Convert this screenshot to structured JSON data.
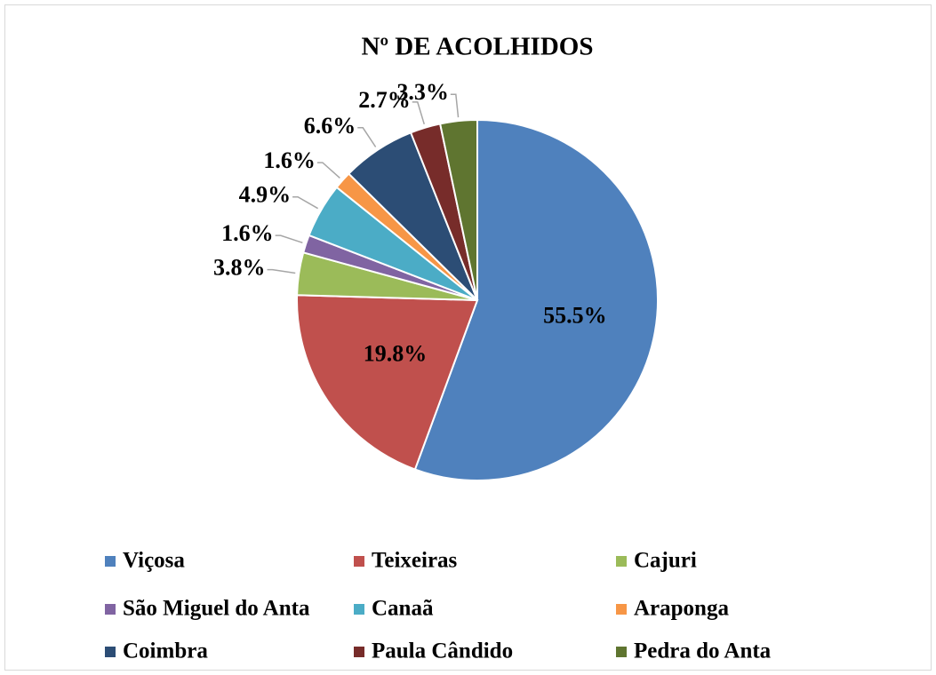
{
  "chart_data": {
    "type": "pie",
    "title": "Nº DE ACOLHIDOS",
    "categories": [
      "Viçosa",
      "Teixeiras",
      "Cajuri",
      "São Miguel do Anta",
      "Canaã",
      "Araponga",
      "Coimbra",
      "Paula Cândido",
      "Pedra do Anta"
    ],
    "values": [
      55.5,
      19.8,
      3.8,
      1.6,
      4.9,
      1.6,
      6.6,
      2.7,
      3.3
    ],
    "value_labels": [
      "55.5%",
      "19.8%",
      "3.8%",
      "1.6%",
      "4.9%",
      "1.6%",
      "6.6%",
      "2.7%",
      "3.3%"
    ],
    "colors": [
      "#4f81bd",
      "#c0504d",
      "#9bbb59",
      "#8064a2",
      "#4bacc6",
      "#f79646",
      "#2c4d75",
      "#772c2a",
      "#5f7530"
    ],
    "legend": "bottom"
  }
}
